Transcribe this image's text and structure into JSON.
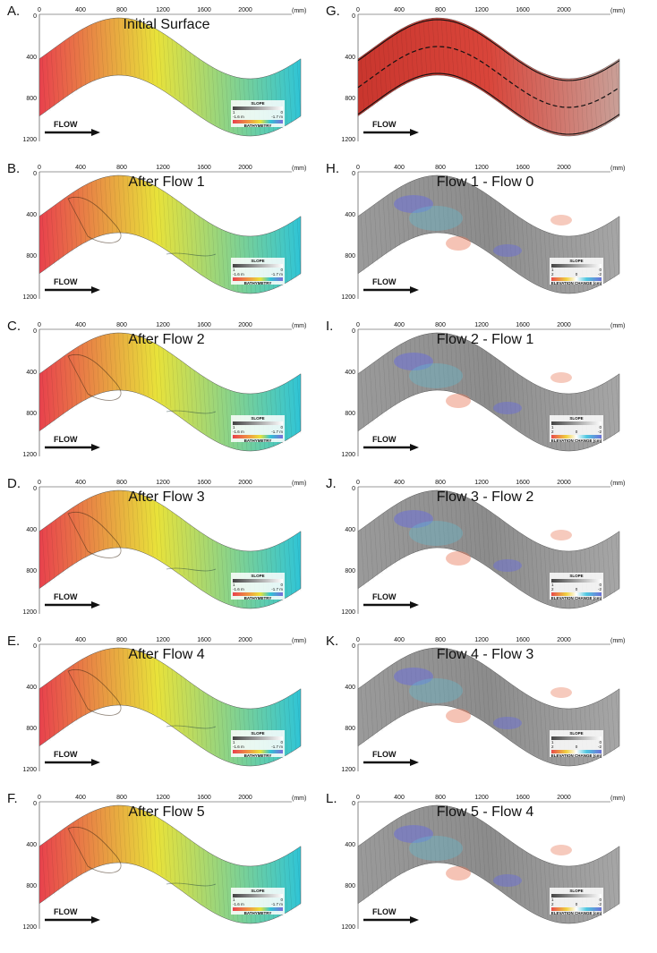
{
  "units": "(mm)",
  "x_ticks": [
    "0",
    "400",
    "800",
    "1200",
    "1600",
    "2000"
  ],
  "y_ticks": [
    "0",
    "400",
    "800",
    "1200"
  ],
  "flow_label": "FLOW",
  "legend": {
    "slope_label": "SLOPE",
    "slope_min": "1",
    "slope_max": "0",
    "bathymetry_label": "BATHYMETRY",
    "bathy_min": "-1.6 m",
    "bathy_max": "-1.7 m",
    "change_label": "ELEVATION CHANGE (cm)",
    "change_min": "2",
    "change_mid": "0",
    "change_max": "-2"
  },
  "colors": {
    "bathy_high": "#e8414d",
    "bathy_mid": "#e8e23a",
    "bathy_low": "#2fc4d6",
    "change_pos": "#e87a5a",
    "change_neg": "#6b6fd8",
    "slope_gray": "#8a8a8a"
  },
  "panels": [
    {
      "letter": "A.",
      "title": "Initial Surface",
      "kind": "bathy"
    },
    {
      "letter": "G.",
      "title": "",
      "kind": "centerline"
    },
    {
      "letter": "B.",
      "title": "After Flow 1",
      "kind": "bathy"
    },
    {
      "letter": "H.",
      "title": "Flow 1 - Flow 0",
      "kind": "change"
    },
    {
      "letter": "C.",
      "title": "After Flow 2",
      "kind": "bathy"
    },
    {
      "letter": "I.",
      "title": "Flow 2 - Flow 1",
      "kind": "change"
    },
    {
      "letter": "D.",
      "title": "After Flow 3",
      "kind": "bathy"
    },
    {
      "letter": "J.",
      "title": "Flow 3 - Flow 2",
      "kind": "change"
    },
    {
      "letter": "E.",
      "title": "After Flow 4",
      "kind": "bathy"
    },
    {
      "letter": "K.",
      "title": "Flow 4 - Flow 3",
      "kind": "change"
    },
    {
      "letter": "F.",
      "title": "After Flow 5",
      "kind": "bathy"
    },
    {
      "letter": "L.",
      "title": "Flow 5 - Flow 4",
      "kind": "change"
    }
  ]
}
